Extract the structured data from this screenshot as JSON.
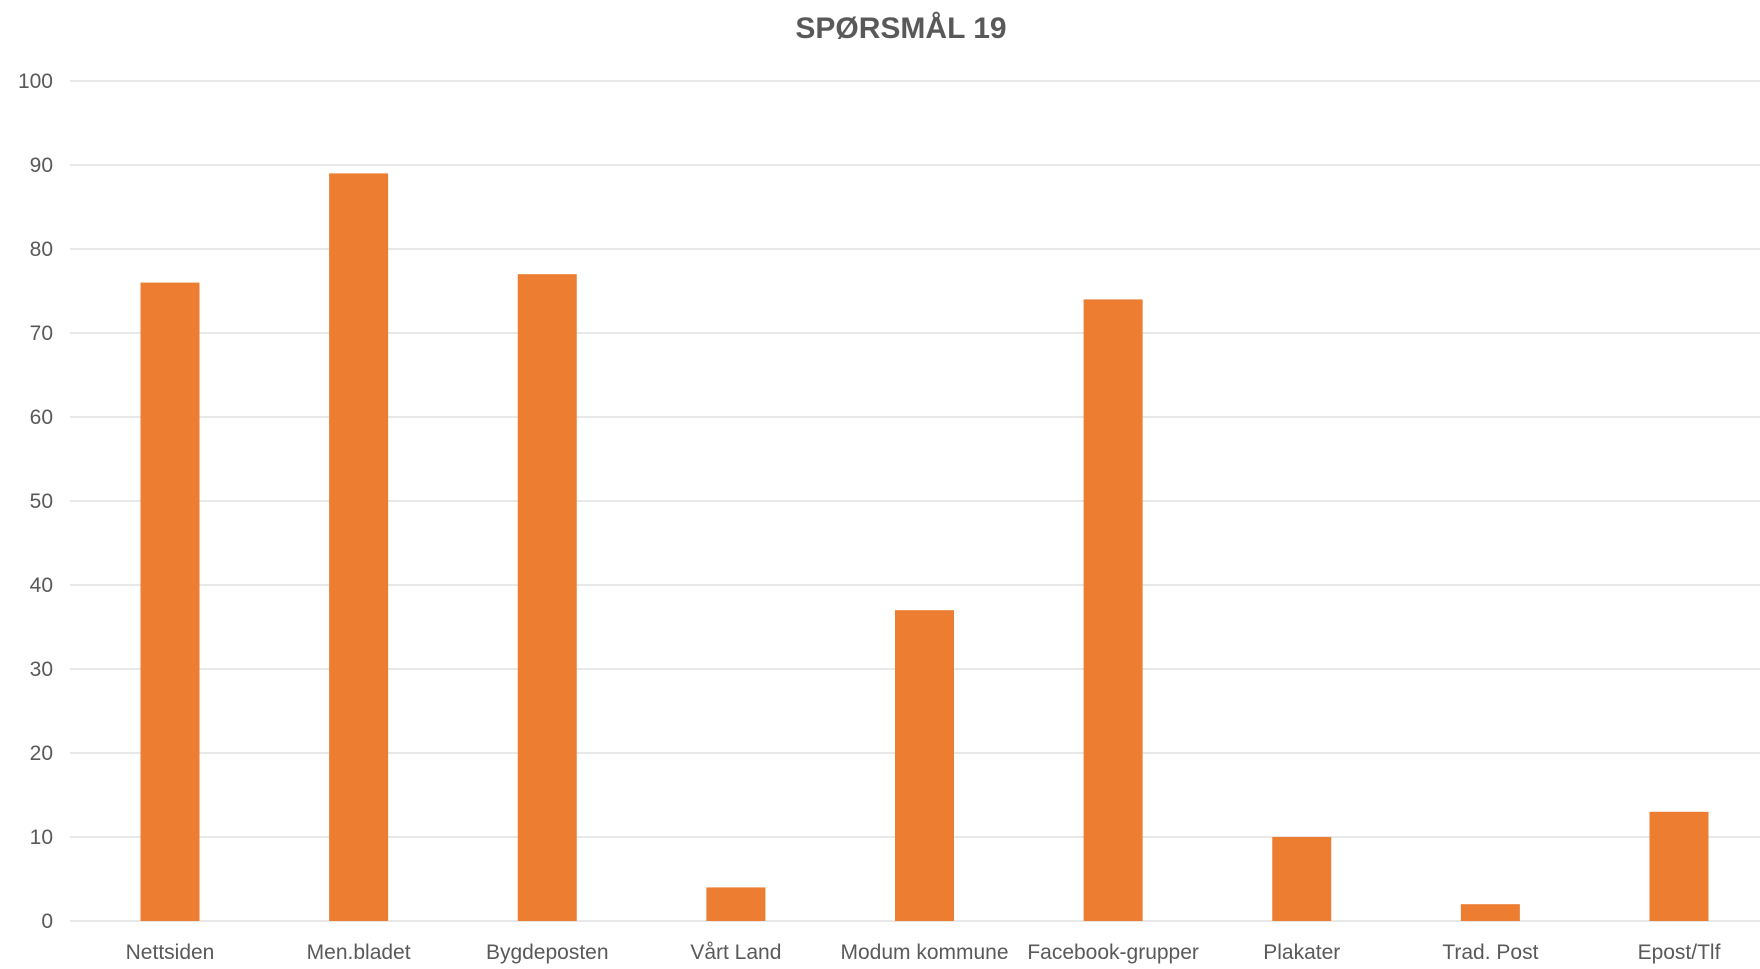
{
  "chart_data": {
    "type": "bar",
    "title": "SPØRSMÅL 19",
    "xlabel": "",
    "ylabel": "",
    "categories": [
      "Nettsiden",
      "Men.bladet",
      "Bygdeposten",
      "Vårt Land",
      "Modum kommune",
      "Facebook-grupper",
      "Plakater",
      "Trad. Post",
      "Epost/Tlf"
    ],
    "values": [
      76,
      89,
      77,
      4,
      37,
      74,
      10,
      2,
      13
    ],
    "ylim": [
      0,
      100
    ],
    "yticks": [
      0,
      10,
      20,
      30,
      40,
      50,
      60,
      70,
      80,
      90,
      100
    ],
    "grid": true,
    "legend": "none",
    "colors": {
      "bar": "#ED7D31",
      "grid": "#D9D9D9",
      "title": "#595959",
      "tick_label": "#595959"
    }
  }
}
